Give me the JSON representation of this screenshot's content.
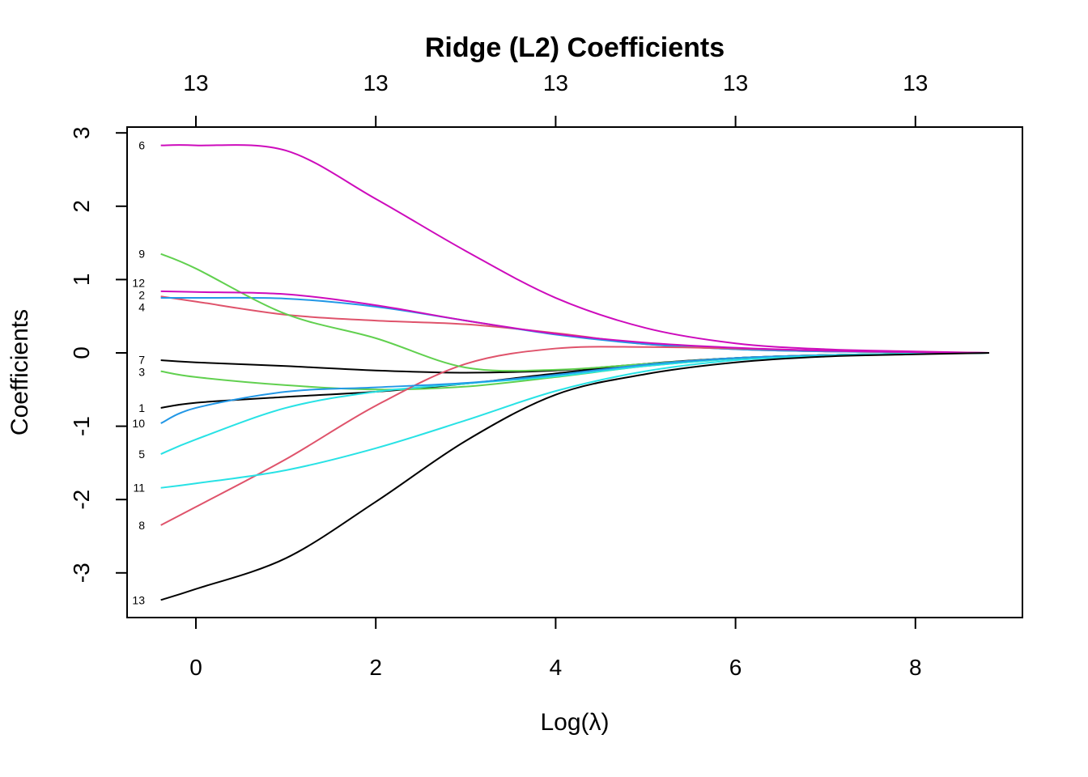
{
  "chart_data": {
    "type": "line",
    "title": "Ridge (L2) Coefficients",
    "xlabel": "Log(λ)",
    "ylabel": "Coefficients",
    "xlim": [
      -0.78,
      9.2
    ],
    "ylim": [
      -3.6,
      3.08
    ],
    "x_ticks": [
      0,
      2,
      4,
      6,
      8
    ],
    "y_ticks": [
      -3,
      -2,
      -1,
      0,
      1,
      2,
      3
    ],
    "top_axis_labels": [
      "13",
      "13",
      "13",
      "13",
      "13"
    ],
    "grid": false,
    "x": [
      -0.39,
      0,
      1,
      2,
      3,
      4,
      5,
      6,
      7,
      8,
      8.82
    ],
    "series": [
      {
        "name": "1",
        "color": "#000000",
        "values": [
          -0.75,
          -0.68,
          -0.6,
          -0.53,
          -0.42,
          -0.28,
          -0.15,
          -0.07,
          -0.03,
          -0.01,
          0
        ]
      },
      {
        "name": "2",
        "color": "#DF536B",
        "values": [
          0.77,
          0.7,
          0.52,
          0.44,
          0.39,
          0.27,
          0.12,
          0.05,
          0.02,
          0.01,
          0
        ]
      },
      {
        "name": "3",
        "color": "#61D04F",
        "values": [
          -0.25,
          -0.33,
          -0.44,
          -0.5,
          -0.46,
          -0.33,
          -0.18,
          -0.08,
          -0.03,
          -0.01,
          0
        ]
      },
      {
        "name": "4",
        "color": "#2297E6",
        "values": [
          0.75,
          0.75,
          0.74,
          0.63,
          0.44,
          0.25,
          0.12,
          0.05,
          0.02,
          0.01,
          0
        ]
      },
      {
        "name": "5",
        "color": "#28E2E5",
        "values": [
          -1.38,
          -1.18,
          -0.75,
          -0.53,
          -0.42,
          -0.32,
          -0.18,
          -0.08,
          -0.03,
          -0.01,
          0
        ]
      },
      {
        "name": "6",
        "color": "#CD0BBC",
        "values": [
          2.83,
          2.83,
          2.76,
          2.1,
          1.39,
          0.75,
          0.34,
          0.13,
          0.05,
          0.02,
          0
        ]
      },
      {
        "name": "7",
        "color": "#000000",
        "values": [
          -0.1,
          -0.13,
          -0.18,
          -0.24,
          -0.27,
          -0.24,
          -0.15,
          -0.07,
          -0.03,
          -0.01,
          0
        ]
      },
      {
        "name": "8",
        "color": "#DF536B",
        "values": [
          -2.35,
          -2.1,
          -1.45,
          -0.72,
          -0.15,
          0.06,
          0.08,
          0.06,
          0.03,
          0.01,
          0
        ]
      },
      {
        "name": "9",
        "color": "#61D04F",
        "values": [
          1.35,
          1.15,
          0.53,
          0.2,
          -0.2,
          -0.23,
          -0.15,
          -0.07,
          -0.03,
          -0.01,
          0
        ]
      },
      {
        "name": "10",
        "color": "#2297E6",
        "values": [
          -0.96,
          -0.75,
          -0.53,
          -0.47,
          -0.41,
          -0.3,
          -0.16,
          -0.07,
          -0.03,
          -0.01,
          0
        ]
      },
      {
        "name": "11",
        "color": "#28E2E5",
        "values": [
          -1.84,
          -1.78,
          -1.6,
          -1.3,
          -0.92,
          -0.52,
          -0.25,
          -0.1,
          -0.04,
          -0.01,
          0
        ]
      },
      {
        "name": "12",
        "color": "#CD0BBC",
        "values": [
          0.84,
          0.83,
          0.8,
          0.65,
          0.44,
          0.26,
          0.14,
          0.07,
          0.03,
          0.01,
          0
        ]
      },
      {
        "name": "13",
        "color": "#000000",
        "values": [
          -3.37,
          -3.22,
          -2.8,
          -2.03,
          -1.2,
          -0.57,
          -0.29,
          -0.13,
          -0.05,
          -0.02,
          0
        ]
      }
    ]
  }
}
